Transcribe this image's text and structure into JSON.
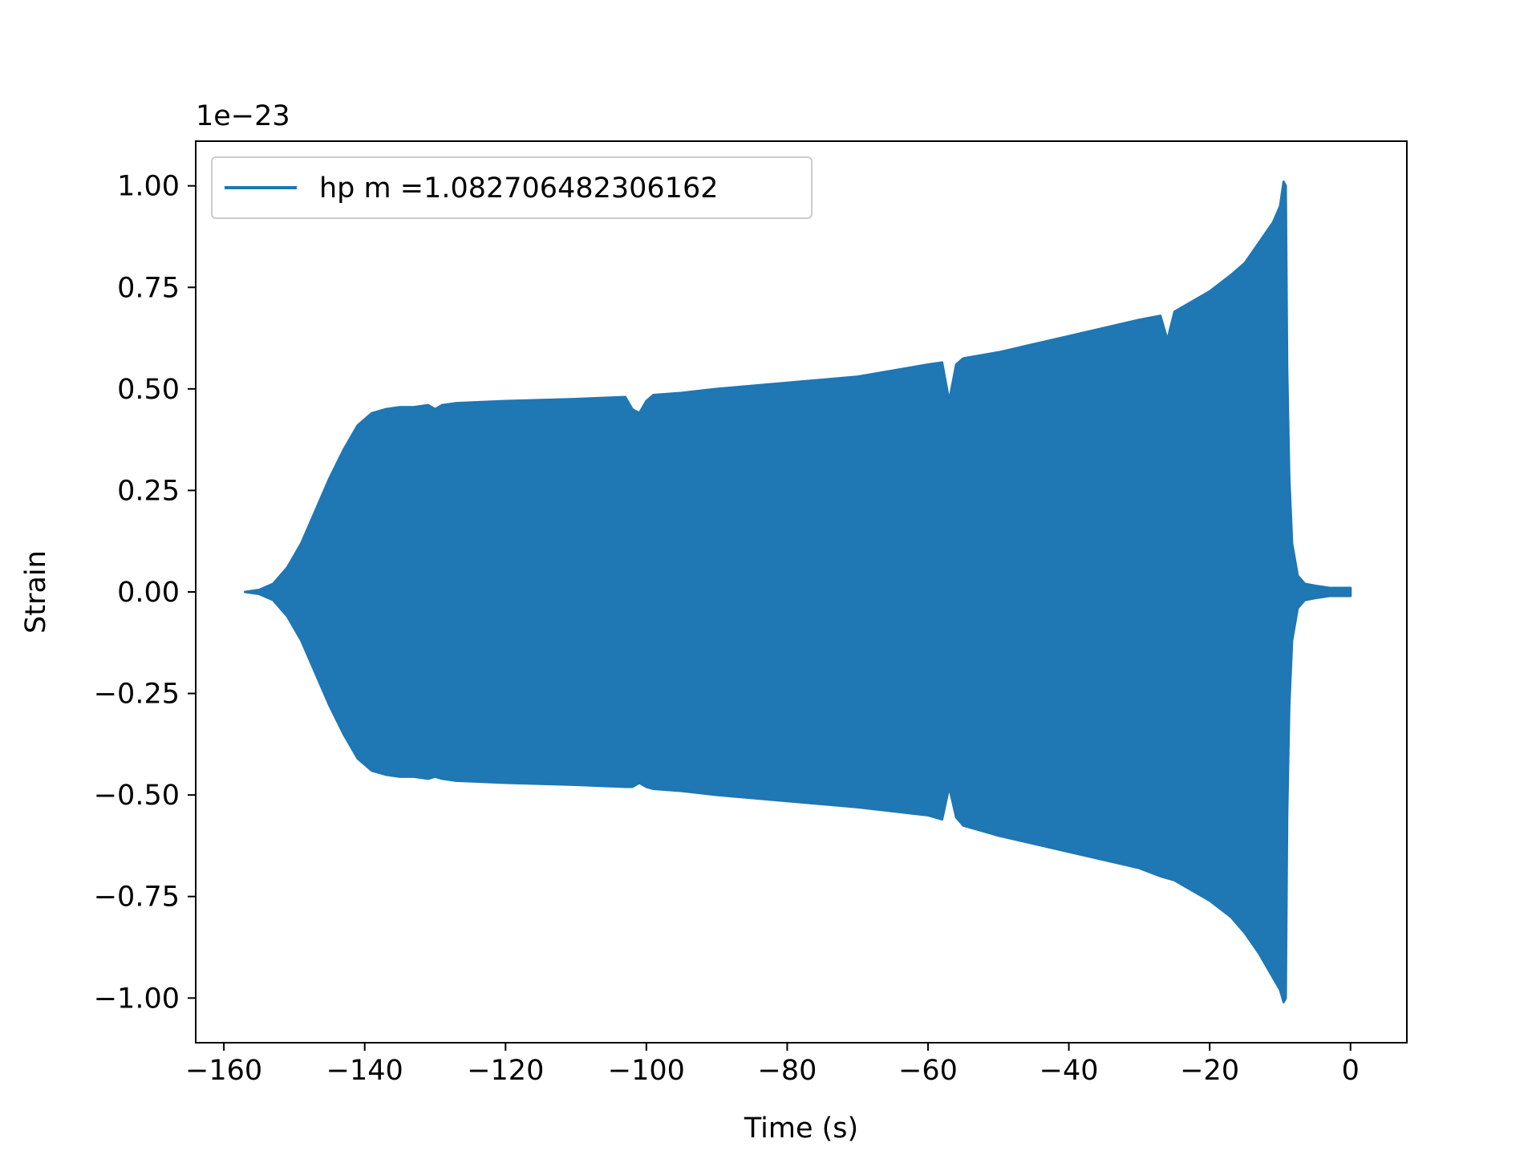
{
  "chart_data": {
    "type": "line",
    "title": "",
    "xlabel": "Time (s)",
    "ylabel": "Strain",
    "y_offset_text": "1e−23",
    "xlim": [
      -164,
      8
    ],
    "ylim": [
      -1.11,
      1.11
    ],
    "xticks": [
      -160,
      -140,
      -120,
      -100,
      -80,
      -60,
      -40,
      -20,
      0
    ],
    "xtick_labels": [
      "−160",
      "−140",
      "−120",
      "−100",
      "−80",
      "−60",
      "−40",
      "−20",
      "0"
    ],
    "yticks": [
      1.0,
      0.75,
      0.5,
      0.25,
      0.0,
      -0.25,
      -0.5,
      -0.75,
      -1.0
    ],
    "ytick_labels": [
      "1.00",
      "0.75",
      "0.50",
      "0.25",
      "0.00",
      "−0.25",
      "−0.50",
      "−0.75",
      "−1.00"
    ],
    "grid": false,
    "legend_position": "upper left",
    "series": [
      {
        "name": "hp m =1.082706482306162",
        "color": "#1f77b4",
        "envelope": {
          "x": [
            -157,
            -155,
            -153,
            -151,
            -149,
            -147,
            -145,
            -143,
            -141,
            -139,
            -137,
            -135,
            -133,
            -131,
            -130,
            -129,
            -127,
            -120,
            -110,
            -103,
            -102,
            -101,
            -100,
            -99,
            -95,
            -90,
            -80,
            -70,
            -60,
            -58,
            -57,
            -56,
            -55,
            -50,
            -40,
            -30,
            -27,
            -26,
            -25,
            -24,
            -20,
            -17,
            -15,
            -13,
            -11,
            -10,
            -9.5,
            -9.2,
            -9,
            -8.7,
            -8.3,
            -7.5,
            -6.5,
            -5,
            -3,
            -1,
            0
          ],
          "upper": [
            0.0,
            0.005,
            0.02,
            0.06,
            0.12,
            0.2,
            0.28,
            0.35,
            0.41,
            0.44,
            0.45,
            0.455,
            0.455,
            0.46,
            0.45,
            0.46,
            0.465,
            0.47,
            0.475,
            0.48,
            0.45,
            0.44,
            0.47,
            0.485,
            0.49,
            0.5,
            0.515,
            0.53,
            0.56,
            0.565,
            0.47,
            0.56,
            0.575,
            0.59,
            0.63,
            0.67,
            0.68,
            0.62,
            0.69,
            0.7,
            0.74,
            0.78,
            0.81,
            0.86,
            0.91,
            0.95,
            1.01,
            1.0,
            0.55,
            0.28,
            0.12,
            0.04,
            0.02,
            0.015,
            0.01,
            0.01,
            0.01
          ],
          "lower": [
            0.0,
            -0.005,
            -0.02,
            -0.06,
            -0.12,
            -0.2,
            -0.28,
            -0.35,
            -0.41,
            -0.44,
            -0.45,
            -0.455,
            -0.455,
            -0.46,
            -0.455,
            -0.46,
            -0.465,
            -0.47,
            -0.475,
            -0.48,
            -0.48,
            -0.47,
            -0.48,
            -0.485,
            -0.49,
            -0.5,
            -0.515,
            -0.53,
            -0.55,
            -0.56,
            -0.48,
            -0.555,
            -0.575,
            -0.6,
            -0.64,
            -0.68,
            -0.7,
            -0.705,
            -0.71,
            -0.72,
            -0.76,
            -0.8,
            -0.84,
            -0.89,
            -0.95,
            -0.98,
            -1.01,
            -1.0,
            -0.55,
            -0.28,
            -0.12,
            -0.04,
            -0.02,
            -0.015,
            -0.01,
            -0.01,
            -0.01
          ]
        }
      }
    ]
  }
}
